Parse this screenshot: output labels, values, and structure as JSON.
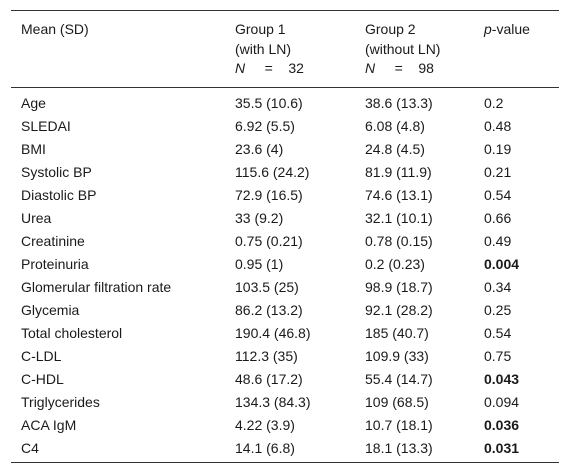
{
  "headers": {
    "col1": "Mean (SD)",
    "group1": {
      "line1": "Group 1",
      "line2": "(with LN)",
      "n_label": "N",
      "n_eq": "=",
      "n_value": "32"
    },
    "group2": {
      "line1": "Group 2",
      "line2": "(without LN)",
      "n_label": "N",
      "n_eq": "=",
      "n_value": "98"
    },
    "pvalue": {
      "prefix": "p",
      "suffix": "-value"
    }
  },
  "rows": [
    {
      "label": "Age",
      "g1": "35.5 (10.6)",
      "g2": "38.6 (13.3)",
      "p": "0.2",
      "significant": false
    },
    {
      "label": "SLEDAI",
      "g1": "6.92 (5.5)",
      "g2": "6.08 (4.8)",
      "p": "0.48",
      "significant": false
    },
    {
      "label": "BMI",
      "g1": "23.6 (4)",
      "g2": "24.8 (4.5)",
      "p": "0.19",
      "significant": false
    },
    {
      "label": "Systolic BP",
      "g1": "115.6 (24.2)",
      "g2": "81.9 (11.9)",
      "p": "0.21",
      "significant": false
    },
    {
      "label": "Diastolic BP",
      "g1": "72.9 (16.5)",
      "g2": "74.6 (13.1)",
      "p": "0.54",
      "significant": false
    },
    {
      "label": "Urea",
      "g1": "33 (9.2)",
      "g2": "32.1 (10.1)",
      "p": "0.66",
      "significant": false
    },
    {
      "label": "Creatinine",
      "g1": "0.75 (0.21)",
      "g2": "0.78 (0.15)",
      "p": "0.49",
      "significant": false
    },
    {
      "label": "Proteinuria",
      "g1": "0.95 (1)",
      "g2": "0.2 (0.23)",
      "p": "0.004",
      "significant": true
    },
    {
      "label": "Glomerular filtration rate",
      "g1": "103.5 (25)",
      "g2": "98.9 (18.7)",
      "p": "0.34",
      "significant": false
    },
    {
      "label": "Glycemia",
      "g1": "86.2 (13.2)",
      "g2": "92.1 (28.2)",
      "p": "0.25",
      "significant": false
    },
    {
      "label": "Total cholesterol",
      "g1": "190.4 (46.8)",
      "g2": "185 (40.7)",
      "p": "0.54",
      "significant": false
    },
    {
      "label": "C-LDL",
      "g1": "112.3 (35)",
      "g2": "109.9 (33)",
      "p": "0.75",
      "significant": false
    },
    {
      "label": "C-HDL",
      "g1": "48.6 (17.2)",
      "g2": "55.4 (14.7)",
      "p": "0.043",
      "significant": true
    },
    {
      "label": "Triglycerides",
      "g1": "134.3 (84.3)",
      "g2": "109 (68.5)",
      "p": "0.094",
      "significant": false
    },
    {
      "label": "ACA IgM",
      "g1": "4.22 (3.9)",
      "g2": "10.7 (18.1)",
      "p": "0.036",
      "significant": true
    },
    {
      "label": "C4",
      "g1": "14.1 (6.8)",
      "g2": "18.1 (13.3)",
      "p": "0.031",
      "significant": true
    }
  ]
}
